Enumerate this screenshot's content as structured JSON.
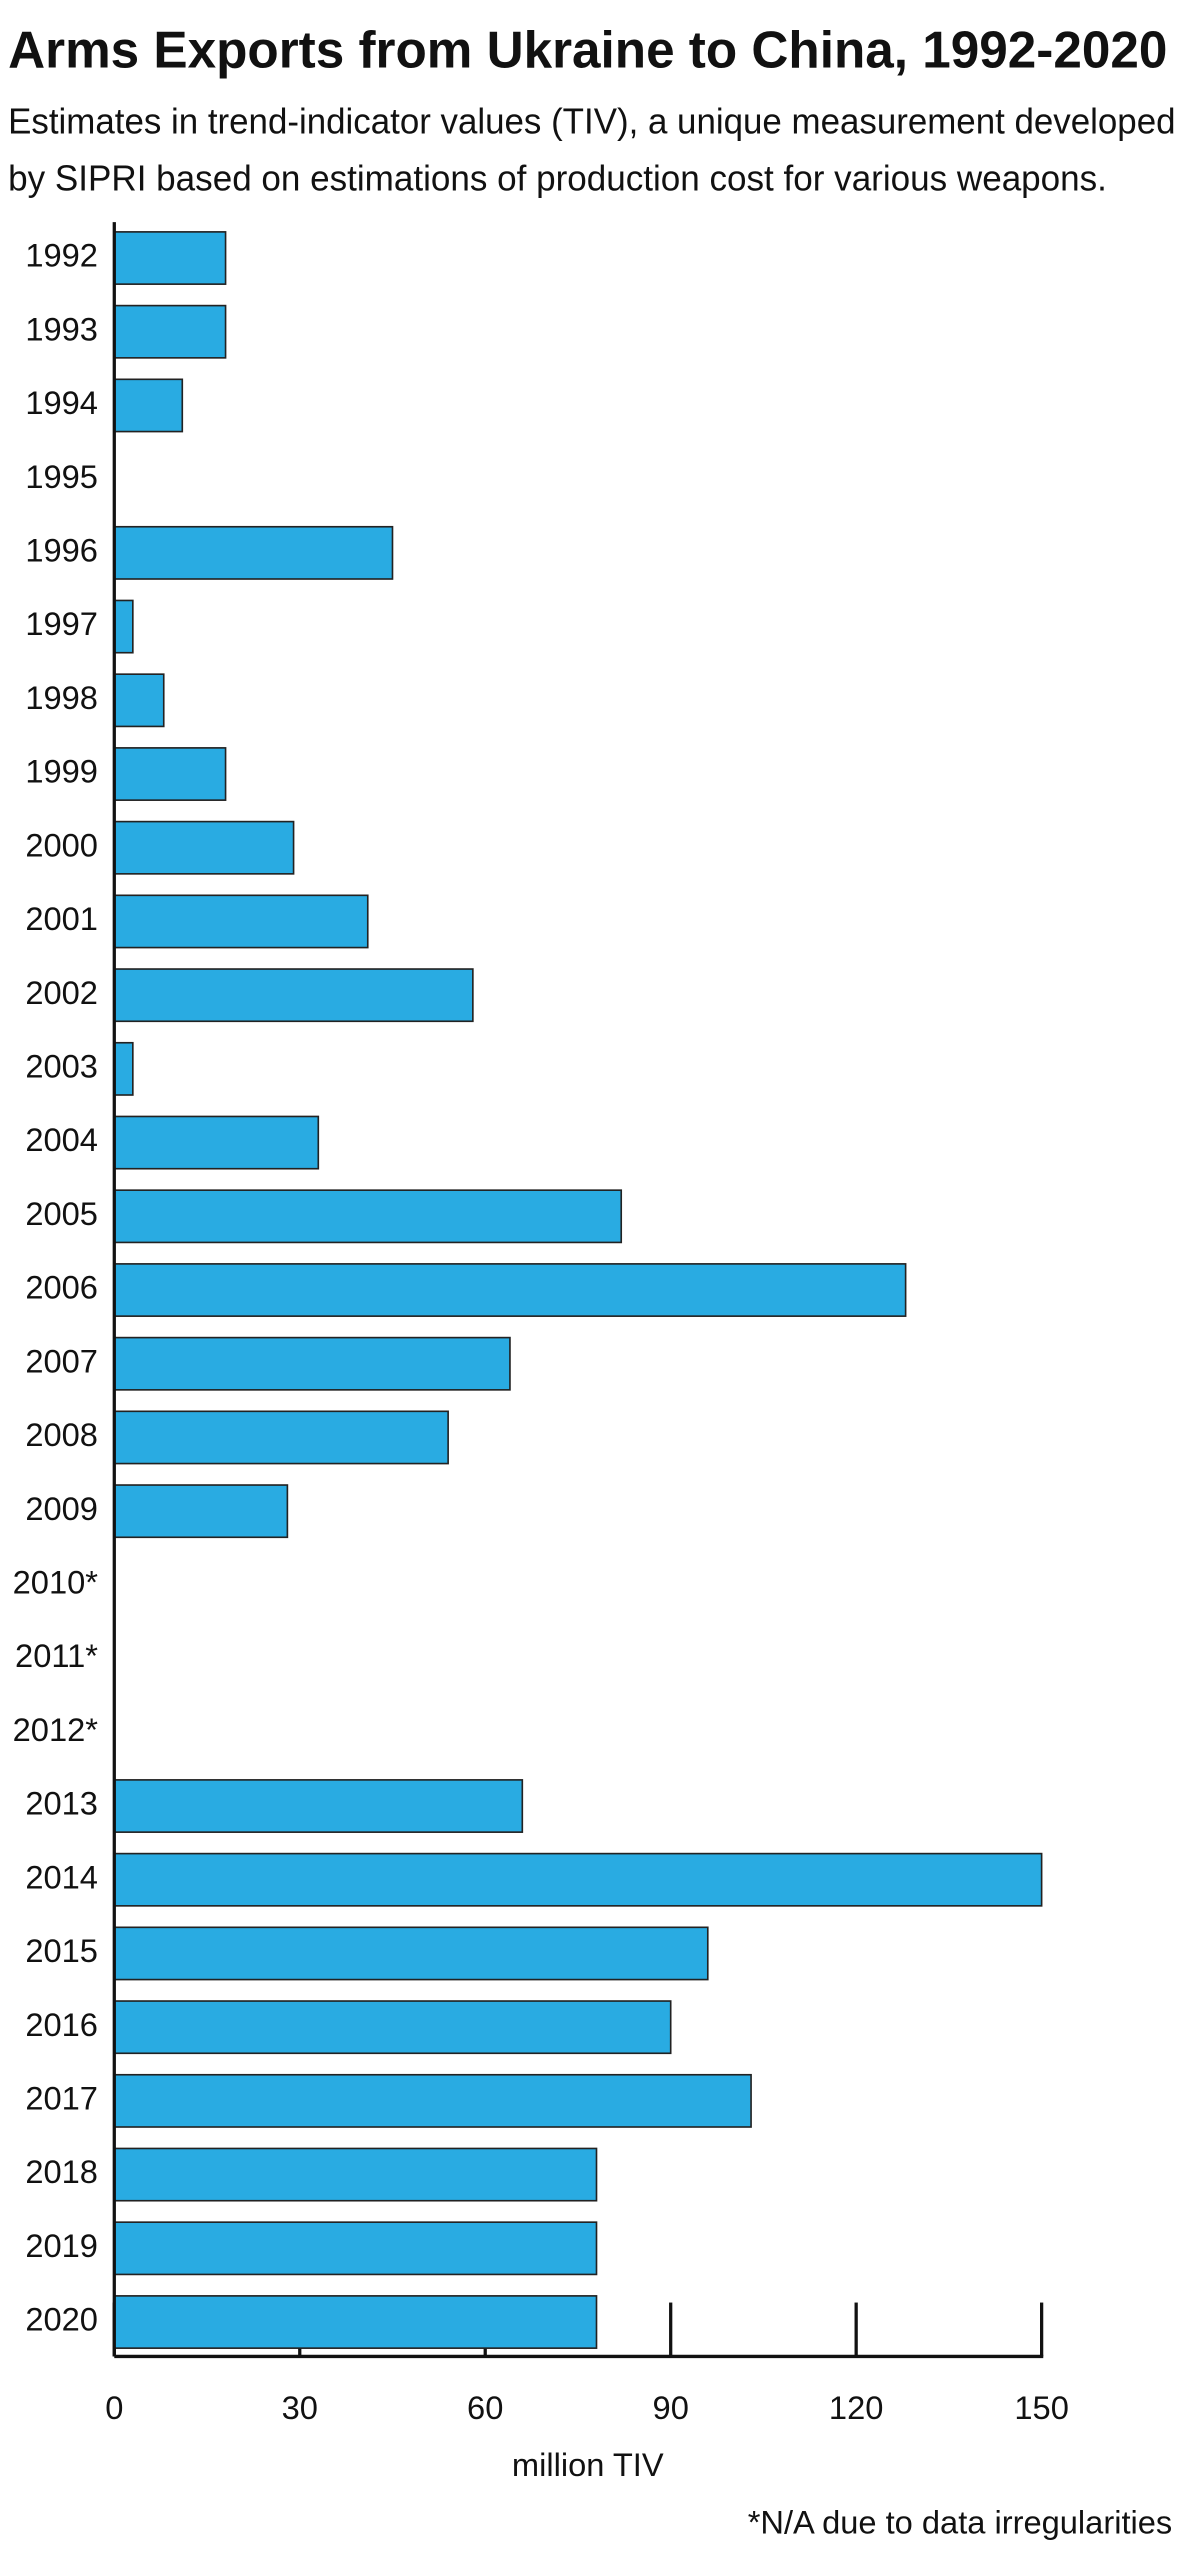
{
  "chart_data": {
    "type": "barh",
    "title": "Arms Exports from Ukraine to China, 1992-2020",
    "subtitle": [
      "Estimates in trend-indicator values (TIV), a unique measurement developed",
      "by SIPRI based on estimations of production cost for various weapons."
    ],
    "categories": [
      "1992",
      "1993",
      "1994",
      "1995",
      "1996",
      "1997",
      "1998",
      "1999",
      "2000",
      "2001",
      "2002",
      "2003",
      "2004",
      "2005",
      "2006",
      "2007",
      "2008",
      "2009",
      "2010*",
      "2011*",
      "2012*",
      "2013",
      "2014",
      "2015",
      "2016",
      "2017",
      "2018",
      "2019",
      "2020"
    ],
    "values": [
      18,
      18,
      11,
      null,
      45,
      3,
      8,
      18,
      29,
      41,
      58,
      3,
      33,
      82,
      128,
      64,
      54,
      28,
      null,
      null,
      null,
      66,
      150,
      96,
      90,
      103,
      78,
      78,
      78
    ],
    "color": "#29abe2",
    "xlim": [
      0,
      150
    ],
    "xticks": [
      0,
      30,
      60,
      90,
      120,
      150
    ],
    "xlabel": "million TIV",
    "footnote": "*N/A due to data irregularities"
  }
}
